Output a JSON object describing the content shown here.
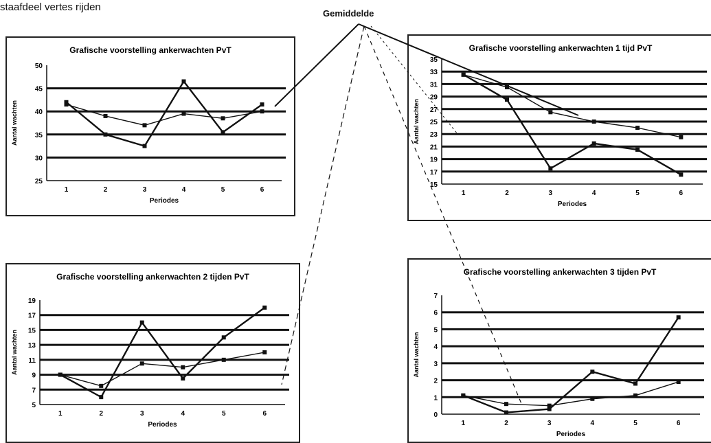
{
  "top_caption": "staafdeel vertes rijden",
  "center_label": "Gemiddelde",
  "chart_data": [
    {
      "type": "line",
      "title": "Grafische voorstelling ankerwachten PvT",
      "xlabel": "Periodes",
      "ylabel": "Aantal wachten",
      "categories": [
        "1",
        "2",
        "3",
        "4",
        "5",
        "6"
      ],
      "ylim": [
        25,
        50
      ],
      "yticks": [
        25,
        30,
        35,
        40,
        45,
        50
      ],
      "ytick_labels": [
        "25",
        "30",
        "35",
        "40",
        "45",
        "50"
      ],
      "gridlines": [
        30,
        35,
        40,
        45
      ],
      "series": [
        {
          "values": [
            42,
            35,
            32.5,
            46.5,
            35.5,
            41.5
          ]
        },
        {
          "values": [
            41.5,
            39,
            37,
            39.5,
            38.5,
            40
          ]
        }
      ]
    },
    {
      "type": "line",
      "title": "Grafische voorstelling ankerwachten 1 tijd PvT",
      "xlabel": "Periodes",
      "ylabel": "Aantal wachten",
      "categories": [
        "1",
        "2",
        "3",
        "4",
        "5",
        "6"
      ],
      "ylim": [
        15,
        35
      ],
      "yticks": [
        15,
        17,
        19,
        21,
        23,
        25,
        27,
        29,
        31,
        33,
        35
      ],
      "ytick_labels": [
        "15",
        "17",
        "19",
        "21",
        "23",
        "25",
        "27",
        "29",
        "31",
        "33",
        "35"
      ],
      "gridlines": [
        17,
        19,
        21,
        23,
        25,
        27,
        29,
        31,
        33
      ],
      "series": [
        {
          "values": [
            32.5,
            28.5,
            17.5,
            21.5,
            20.5,
            16.5
          ]
        },
        {
          "values": [
            32.5,
            30.5,
            26.5,
            25,
            24,
            22.5
          ]
        }
      ]
    },
    {
      "type": "line",
      "title": "Grafische voorstelling ankerwachten 2 tijden PvT",
      "xlabel": "Periodes",
      "ylabel": "Aantal wachten",
      "categories": [
        "1",
        "2",
        "3",
        "4",
        "5",
        "6"
      ],
      "ylim": [
        5,
        19
      ],
      "yticks": [
        5,
        7,
        9,
        11,
        13,
        15,
        17,
        19
      ],
      "ytick_labels": [
        "5",
        "7",
        "9",
        "11",
        "13",
        "15",
        "17",
        "19"
      ],
      "gridlines": [
        7,
        9,
        11,
        13,
        15,
        17
      ],
      "series": [
        {
          "values": [
            9,
            6,
            16,
            8.5,
            14,
            18
          ]
        },
        {
          "values": [
            9,
            7.5,
            10.5,
            10,
            11,
            12
          ]
        }
      ]
    },
    {
      "type": "line",
      "title": "Grafische voorstelling ankerwachten 3 tijden PvT",
      "xlabel": "Periodes",
      "ylabel": "Aantal wachten",
      "categories": [
        "1",
        "2",
        "3",
        "4",
        "5",
        "6"
      ],
      "ylim": [
        0,
        7
      ],
      "yticks": [
        0,
        1,
        2,
        3,
        4,
        5,
        6,
        7
      ],
      "ytick_labels": [
        "0",
        "1",
        "2",
        "3",
        "4",
        "5",
        "6",
        "7"
      ],
      "gridlines": [
        1,
        2,
        3,
        4,
        5,
        6
      ],
      "series": [
        {
          "values": [
            1.1,
            0.1,
            0.3,
            2.5,
            1.8,
            5.7
          ]
        },
        {
          "values": [
            1.1,
            0.6,
            0.5,
            0.9,
            1.1,
            1.9
          ]
        }
      ]
    }
  ]
}
